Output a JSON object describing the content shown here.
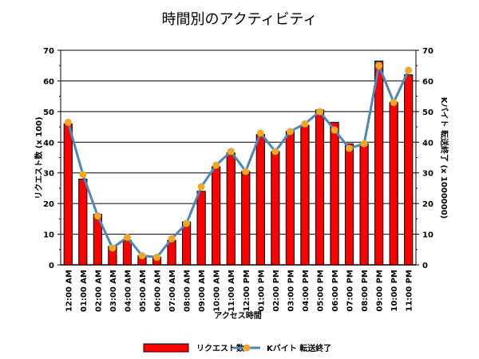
{
  "chart_data": {
    "type": "bar",
    "title": "時間別のアクティビティ",
    "xlabel": "アクセス時間",
    "ylabel": "リクエスト数 (x 100)",
    "y2label": "Kバイト 転送終了 (x 1000000)",
    "ylim": [
      0,
      70
    ],
    "y2lim": [
      0,
      70
    ],
    "yticks": [
      0,
      10,
      20,
      30,
      40,
      50,
      60,
      70
    ],
    "grid": true,
    "legend_position": "bottom",
    "categories": [
      "12:00 AM",
      "01:00 AM",
      "02:00 AM",
      "03:00 AM",
      "04:00 AM",
      "05:00 AM",
      "06:00 AM",
      "07:00 AM",
      "08:00 AM",
      "09:00 AM",
      "10:00 AM",
      "11:00 AM",
      "12:00 PM",
      "01:00 PM",
      "02:00 PM",
      "03:00 PM",
      "04:00 PM",
      "05:00 PM",
      "06:00 PM",
      "07:00 PM",
      "08:00 PM",
      "09:00 PM",
      "10:00 PM",
      "11:00 PM"
    ],
    "series": [
      {
        "name": "リクエスト数",
        "kind": "bar",
        "axis": "left",
        "color": "#ff0000",
        "values": [
          46,
          28,
          16.5,
          6,
          8,
          3,
          2.5,
          8,
          14,
          24,
          32,
          36.5,
          30.5,
          42.5,
          37,
          43.5,
          45.5,
          50.5,
          46.5,
          39.5,
          39.5,
          66.5,
          53,
          62
        ]
      },
      {
        "name": "Kバイト 転送終了",
        "kind": "line",
        "axis": "right",
        "color": "#4f86b8",
        "marker_color": "#f5a623",
        "values": [
          46.5,
          29.5,
          16,
          5.5,
          9,
          3,
          2.5,
          8.5,
          13.5,
          25.5,
          32.5,
          37,
          30.5,
          43,
          37,
          43.5,
          46,
          50,
          44,
          38,
          39.5,
          65,
          53,
          63.5
        ]
      }
    ]
  }
}
